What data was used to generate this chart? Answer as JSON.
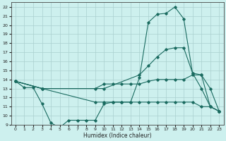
{
  "xlabel": "Humidex (Indice chaleur)",
  "xlim": [
    -0.5,
    23.5
  ],
  "ylim": [
    9,
    22.5
  ],
  "xticks": [
    0,
    1,
    2,
    3,
    4,
    5,
    6,
    7,
    8,
    9,
    10,
    11,
    12,
    13,
    14,
    15,
    16,
    17,
    18,
    19,
    20,
    21,
    22,
    23
  ],
  "yticks": [
    9,
    10,
    11,
    12,
    13,
    14,
    15,
    16,
    17,
    18,
    19,
    20,
    21,
    22
  ],
  "bg_color": "#cdf0ee",
  "line_color": "#1a6b60",
  "grid_color": "#aacfcf",
  "line1_x": [
    0,
    1,
    2,
    3,
    4,
    5,
    6,
    7,
    8,
    9,
    10,
    11,
    12,
    13,
    14,
    15,
    16,
    17,
    18,
    19,
    20,
    21,
    22,
    23
  ],
  "line1_y": [
    13.8,
    13.1,
    13.1,
    11.3,
    9.2,
    8.7,
    9.5,
    9.5,
    9.5,
    9.5,
    11.3,
    11.5,
    11.5,
    11.5,
    14.2,
    20.3,
    21.2,
    21.3,
    22.0,
    20.7,
    14.7,
    13.0,
    11.0,
    10.5
  ],
  "line2_x": [
    0,
    3,
    10,
    14,
    15,
    16,
    17,
    18,
    19,
    20,
    21,
    22,
    23
  ],
  "line2_y": [
    13.8,
    13.0,
    13.0,
    14.5,
    15.5,
    16.5,
    17.3,
    17.5,
    17.5,
    14.7,
    14.5,
    13.0,
    10.5
  ],
  "line3_x": [
    0,
    3,
    9,
    10,
    11,
    12,
    13,
    14,
    15,
    16,
    17,
    18,
    19,
    20,
    21,
    22,
    23
  ],
  "line3_y": [
    13.8,
    13.0,
    13.0,
    13.5,
    13.5,
    13.5,
    13.5,
    13.5,
    13.8,
    14.0,
    14.0,
    14.0,
    14.0,
    14.5,
    14.5,
    11.0,
    10.5
  ],
  "line4_x": [
    0,
    3,
    9,
    10,
    11,
    12,
    13,
    14,
    15,
    16,
    17,
    18,
    19,
    20,
    21,
    22,
    23
  ],
  "line4_y": [
    13.8,
    13.0,
    11.5,
    11.5,
    11.5,
    11.5,
    11.5,
    11.5,
    11.5,
    11.5,
    11.5,
    11.5,
    11.5,
    11.5,
    11.0,
    11.0,
    10.5
  ]
}
